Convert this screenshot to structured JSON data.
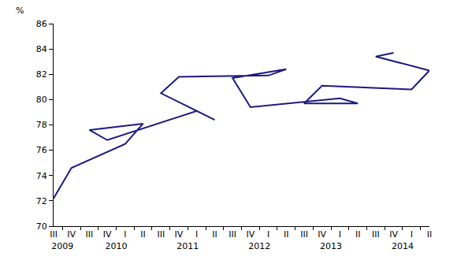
{
  "chart_data": {
    "type": "line",
    "y_label": "%",
    "categories": [
      "III",
      "IV",
      "I",
      "II",
      "III",
      "IV",
      "I",
      "II",
      "III",
      "IV",
      "I",
      "II",
      "III",
      "IV",
      "I",
      "II",
      "III",
      "IV",
      "I",
      "II",
      "III",
      "IV"
    ],
    "years": [
      "2009",
      "2009",
      "2010",
      "2010",
      "2010",
      "2010",
      "2011",
      "2011",
      "2011",
      "2011",
      "2012",
      "2012",
      "2012",
      "2012",
      "2013",
      "2013",
      "2013",
      "2013",
      "2014",
      "2014",
      "2014",
      "2014"
    ],
    "values": [
      72.2,
      74.6,
      76.5,
      78.1,
      77.6,
      76.8,
      79.1,
      78.4,
      80.5,
      81.8,
      81.9,
      82.4,
      81.7,
      79.4,
      80.1,
      79.7,
      79.7,
      81.1,
      80.8,
      82.3,
      83.4,
      83.7
    ],
    "color": "#1a1a80",
    "ylim": [
      70,
      86
    ],
    "yticks": [
      70,
      72,
      74,
      76,
      78,
      80,
      82,
      84,
      86
    ],
    "grid": false
  }
}
